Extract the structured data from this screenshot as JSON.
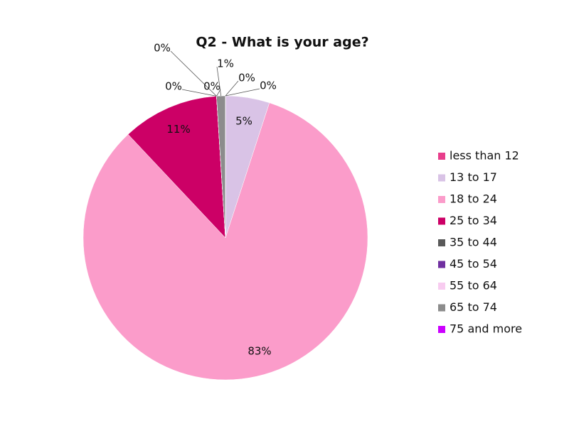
{
  "chart_data": {
    "type": "pie",
    "title": "Q2 - What is your age?",
    "categories": [
      "less than 12",
      "13 to 17",
      "18 to 24",
      "25 to 34",
      "35 to 44",
      "45 to 54",
      "55 to 64",
      "65 to 74",
      "75 and more"
    ],
    "values": [
      0,
      5,
      83,
      11,
      0,
      0,
      0,
      1,
      0
    ],
    "value_labels": [
      "0%",
      "5%",
      "83%",
      "11%",
      "0%",
      "0%",
      "0%",
      "1%",
      "0%"
    ],
    "colors": [
      "#e83e8c",
      "#d9c3e6",
      "#fb9cca",
      "#cc0066",
      "#595959",
      "#7030a0",
      "#f8ccf0",
      "#8c8c8c",
      "#cc00ff"
    ]
  }
}
